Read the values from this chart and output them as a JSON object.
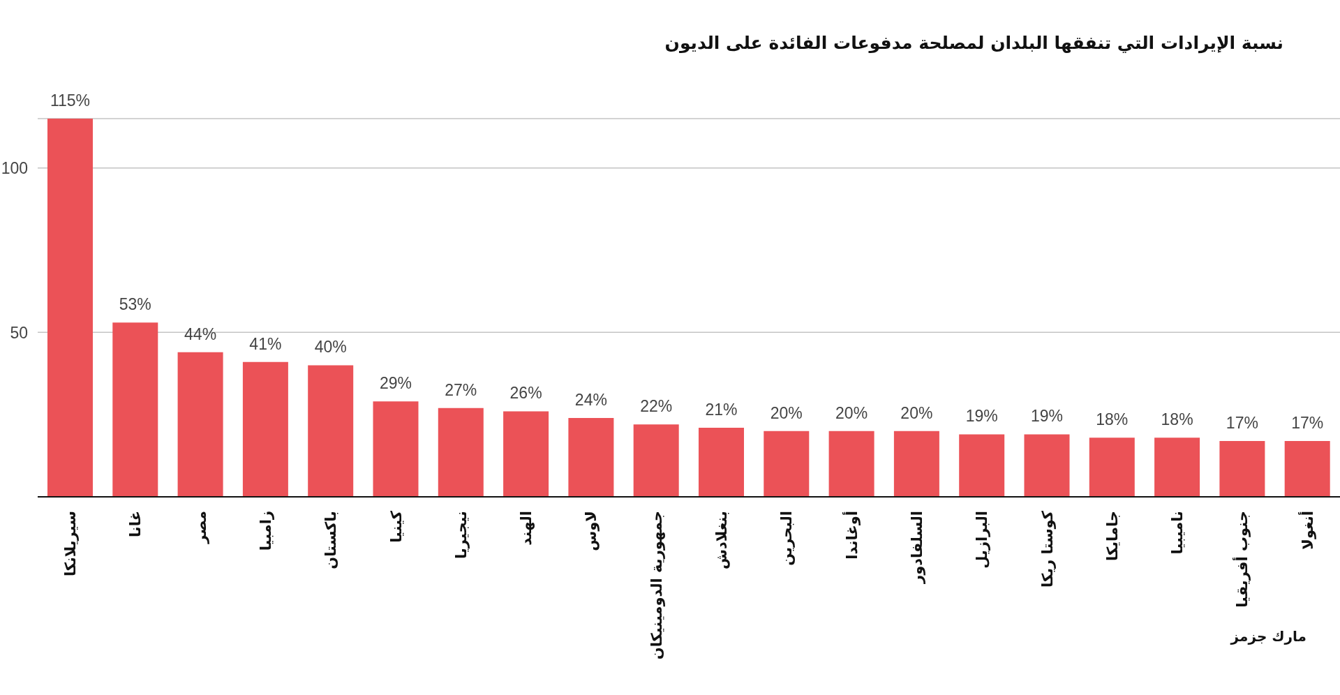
{
  "chart_data": {
    "type": "bar",
    "title": "نسبة الإيرادات التي تنفقها البلدان لمصلحة مدفوعات الفائدة على الديون",
    "categories": [
      "سيريلانكا",
      "غانا",
      "مصر",
      "زامبيا",
      "باكستان",
      "كينيا",
      "نيجيريا",
      "الهند",
      "لاوس",
      "جمهورية الدومينيكان",
      "بنغلادش",
      "البحرين",
      "أوغاندا",
      "السلفادور",
      "البرازيل",
      "كوستا ريكا",
      "جامايكا",
      "ناميبيا",
      "جنوب أفريقيا",
      "أنغولا"
    ],
    "values": [
      115,
      53,
      44,
      41,
      40,
      29,
      27,
      26,
      24,
      22,
      21,
      20,
      20,
      20,
      19,
      19,
      18,
      18,
      17,
      17
    ],
    "value_labels": [
      "115%",
      "53%",
      "44%",
      "41%",
      "40%",
      "29%",
      "27%",
      "26%",
      "24%",
      "22%",
      "21%",
      "20%",
      "20%",
      "20%",
      "19%",
      "19%",
      "18%",
      "18%",
      "17%",
      "17%"
    ],
    "color": "#eb5257",
    "ylim": [
      0,
      115
    ],
    "yticks": [
      50,
      100
    ],
    "grid": "y",
    "annotations": [
      "مارك جزمز"
    ]
  }
}
